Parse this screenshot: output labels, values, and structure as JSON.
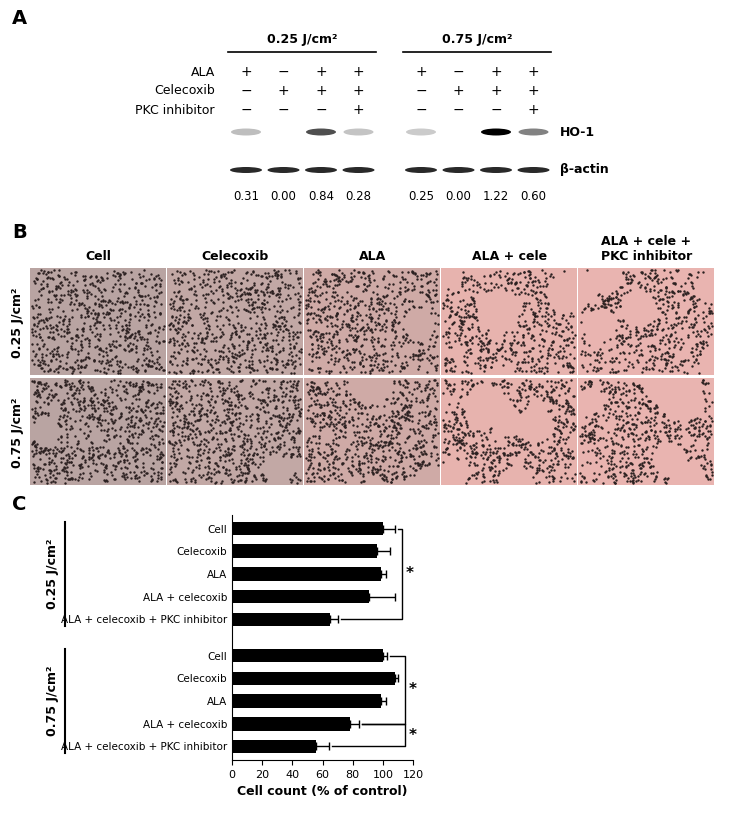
{
  "panel_a": {
    "panel": "A",
    "rows": [
      "ALA",
      "Celecoxib",
      "PKC inhibitor"
    ],
    "bands": [
      "HO-1",
      "β-actin"
    ],
    "groups": [
      {
        "title": "0.25 J/cm²",
        "treatments": [
          [
            "+",
            "−",
            "+",
            "+"
          ],
          [
            "−",
            "+",
            "+",
            "+"
          ],
          [
            "−",
            "−",
            "−",
            "+"
          ]
        ],
        "ratios": [
          "0.31",
          "0.00",
          "0.84",
          "0.28"
        ]
      },
      {
        "title": "0.75 J/cm²",
        "treatments": [
          [
            "+",
            "−",
            "+",
            "+"
          ],
          [
            "−",
            "+",
            "+",
            "+"
          ],
          [
            "−",
            "−",
            "−",
            "+"
          ]
        ],
        "ratios": [
          "0.25",
          "0.00",
          "1.22",
          "0.60"
        ]
      }
    ]
  },
  "panel_b": {
    "panel": "B",
    "columns": [
      "Cell",
      "Celecoxib",
      "ALA",
      "ALA + cele",
      "ALA + cele + PKC inhibitor"
    ],
    "rows": [
      "0.25 J/cm²",
      "0.75 J/cm²"
    ]
  },
  "chart_data": {
    "type": "bar",
    "orientation": "horizontal",
    "panel": "C",
    "xlabel": "Cell count (% of control)",
    "xlim": [
      0,
      120
    ],
    "xticks": [
      0,
      20,
      40,
      60,
      80,
      100,
      120
    ],
    "color": "#000000",
    "groups": [
      {
        "label": "0.25 J/cm²",
        "categories": [
          "Cell",
          "Celecoxib",
          "ALA",
          "ALA + celecoxib",
          "ALA + celecoxib + PKC inhibitor"
        ],
        "values": [
          100,
          96,
          99,
          91,
          65
        ],
        "errors": [
          8,
          9,
          3,
          17,
          5
        ],
        "significance": [
          {
            "from": "Cell",
            "to": "ALA + celecoxib + PKC inhibitor",
            "label": "*"
          }
        ]
      },
      {
        "label": "0.75 J/cm²",
        "categories": [
          "Cell",
          "Celecoxib",
          "ALA",
          "ALA + celecoxib",
          "ALA + celecoxib + PKC inhibitor"
        ],
        "values": [
          100,
          108,
          99,
          78,
          56
        ],
        "errors": [
          3,
          2,
          3,
          6,
          8
        ],
        "significance": [
          {
            "from": "Cell",
            "to": "ALA + celecoxib",
            "label": "*"
          },
          {
            "from": "ALA + celecoxib",
            "to": "ALA + celecoxib + PKC inhibitor",
            "label": "*"
          }
        ]
      }
    ]
  }
}
